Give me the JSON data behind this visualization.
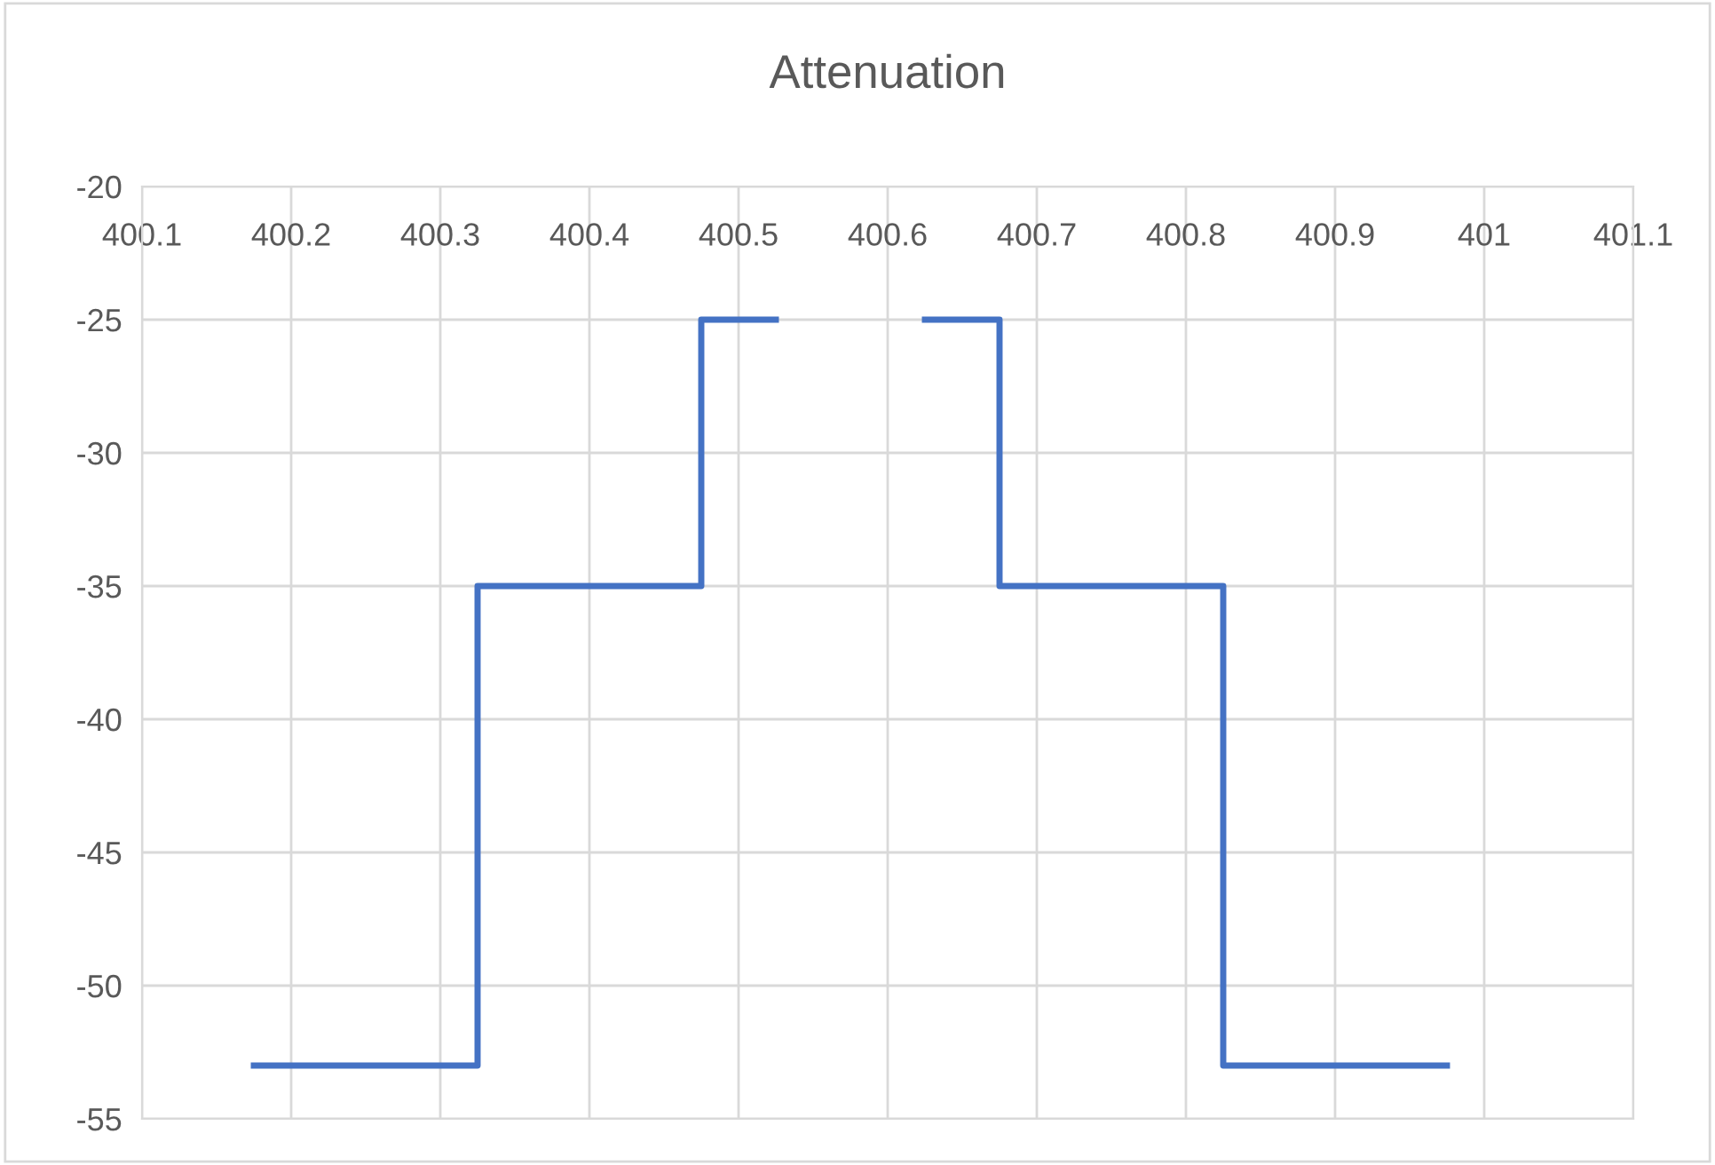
{
  "chart_data": {
    "type": "line",
    "title": "Attenuation",
    "x": [
      400.175,
      400.325,
      400.325,
      400.475,
      400.475,
      400.525,
      400.575,
      400.625,
      400.675,
      400.675,
      400.825,
      400.825,
      400.975
    ],
    "series": [
      {
        "color": "#4472c4",
        "values": [
          -53,
          -53,
          -35,
          -35,
          -25,
          -25,
          null,
          -25,
          -25,
          -35,
          -35,
          -53,
          -53
        ]
      }
    ],
    "xlim": [
      400.1,
      401.1
    ],
    "xticks": [
      400.1,
      400.2,
      400.3,
      400.4,
      400.5,
      400.6,
      400.7,
      400.8,
      400.9,
      401,
      401.1
    ],
    "ylim": [
      -55,
      -20
    ],
    "yticks": [
      -55,
      -50,
      -45,
      -40,
      -35,
      -30,
      -25,
      -20
    ],
    "grid": true,
    "legend": false,
    "marker": "none",
    "line_style": "solid"
  }
}
